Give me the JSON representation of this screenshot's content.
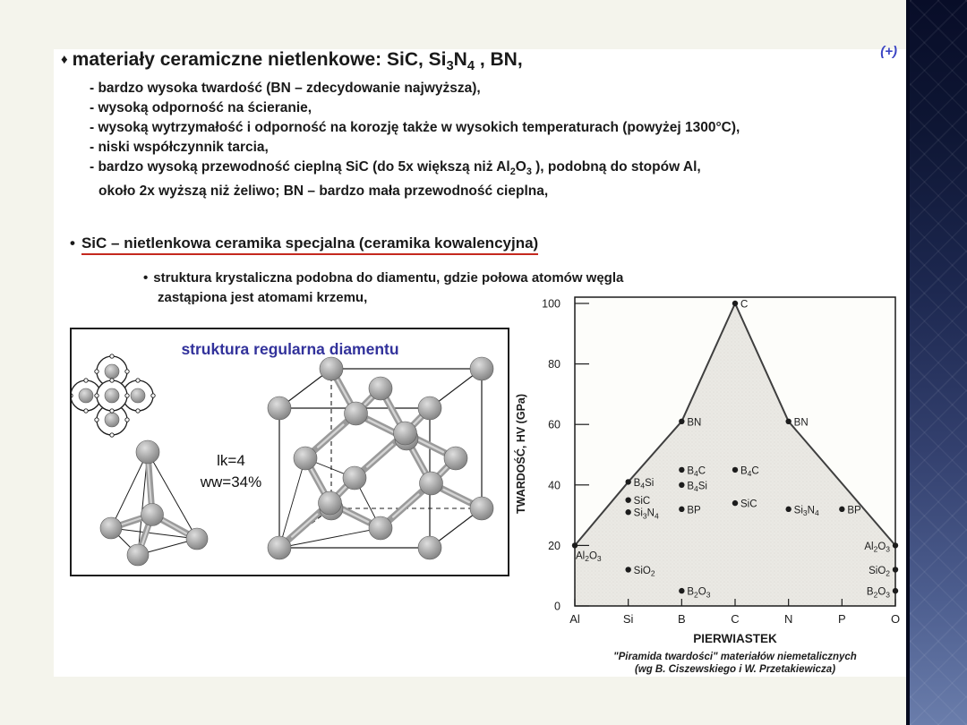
{
  "page": {
    "plus_mark": "(+)"
  },
  "main_bullet": {
    "marker": "♦",
    "title": "materiały ceramiczne nietlenkowe: SiC, Si_3_N_4_ , BN,",
    "items": [
      "- bardzo wysoka twardość (BN – zdecydowanie najwyższa),",
      "- wysoką odporność na ścieranie,",
      "- wysoką wytrzymałość i odporność na korozję także w wysokich temperaturach (powyżej 1300°C),",
      "- niski współczynnik tarcia,",
      "- bardzo wysoką przewodność cieplną SiC (do 5x większą niż Al_2_O_3_ ), podobną do stopów Al,",
      "około 2x wyższą niż żeliwo; BN – bardzo mała przewodność cieplna,"
    ]
  },
  "sic_section": {
    "marker": "•",
    "heading": "SiC – nietlenkowa ceramika specjalna (ceramika kowalencyjna)",
    "sub_marker": "•",
    "sub_lines": [
      "struktura krystaliczna podobna do diamentu, gdzie połowa atomów węgla",
      "zastąpiona jest atomami krzemu,"
    ]
  },
  "figure": {
    "title": "struktura regularna diamentu",
    "annotation_lines": [
      "lk=4",
      "ww=34%"
    ]
  },
  "chart_data": {
    "type": "scatter",
    "title": "",
    "xlabel": "PIERWIASTEK",
    "ylabel": "TWARDOŚĆ, HV (GPa)",
    "categories": [
      "Al",
      "Si",
      "B",
      "C",
      "N",
      "P",
      "O"
    ],
    "ylim": [
      0,
      100
    ],
    "yticks": [
      0,
      20,
      40,
      60,
      80,
      100
    ],
    "grid": false,
    "legend": "none",
    "points": [
      {
        "label": "C",
        "x": "C",
        "y": 100,
        "side": "right"
      },
      {
        "label": "BN",
        "x": "B",
        "y": 61,
        "side": "right"
      },
      {
        "label": "BN",
        "x": "N",
        "y": 61,
        "side": "right"
      },
      {
        "label": "B_4_C",
        "x": "B",
        "y": 45,
        "side": "right"
      },
      {
        "label": "B_4_C",
        "x": "C",
        "y": 45,
        "side": "right"
      },
      {
        "label": "B_4_Si",
        "x": "Si",
        "y": 41,
        "side": "right"
      },
      {
        "label": "B_4_Si",
        "x": "B",
        "y": 40,
        "side": "right"
      },
      {
        "label": "SiC",
        "x": "Si",
        "y": 35,
        "side": "right"
      },
      {
        "label": "SiC",
        "x": "C",
        "y": 34,
        "side": "right"
      },
      {
        "label": "Si_3_N_4_",
        "x": "Si",
        "y": 31,
        "side": "right"
      },
      {
        "label": "Si_3_N_4_",
        "x": "N",
        "y": 32,
        "side": "right"
      },
      {
        "label": "BP",
        "x": "B",
        "y": 32,
        "side": "right"
      },
      {
        "label": "BP",
        "x": "P",
        "y": 32,
        "side": "right"
      },
      {
        "label": "Al_2_O_3_",
        "x": "Al",
        "y": 20,
        "side": "below-right"
      },
      {
        "label": "Al_2_O_3_",
        "x": "O",
        "y": 20,
        "side": "left"
      },
      {
        "label": "SiO_2_",
        "x": "Si",
        "y": 12,
        "side": "right"
      },
      {
        "label": "SiO_2_",
        "x": "O",
        "y": 12,
        "side": "left"
      },
      {
        "label": "B_2_O_3_",
        "x": "B",
        "y": 5,
        "side": "right"
      },
      {
        "label": "B_2_O_3_",
        "x": "O",
        "y": 5,
        "side": "left"
      }
    ],
    "envelope": [
      [
        "Al",
        20
      ],
      [
        "Si",
        41
      ],
      [
        "B",
        61
      ],
      [
        "C",
        100
      ],
      [
        "N",
        61
      ],
      [
        "O",
        20
      ]
    ],
    "caption_lines": [
      "\"Piramida twardości\" materiałów niemetalicznych",
      "(wg B. Ciszewskiego i W. Przetakiewicza)"
    ]
  },
  "colors": {
    "accent_red": "#c4281e",
    "figure_title_blue": "#32329b",
    "plus_blue": "#3b45c4",
    "chart_ink": "#1c1c1c",
    "pyramid_fill": "#eae9e4",
    "strip_top": "#080d28",
    "strip_bottom": "#6a7dab"
  }
}
